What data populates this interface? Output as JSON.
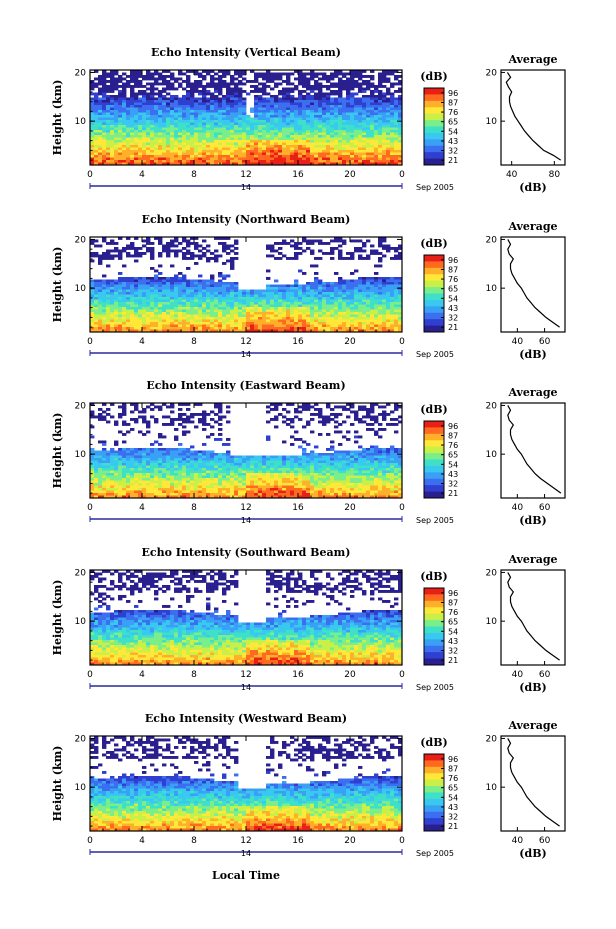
{
  "colors": {
    "colormap": [
      "#2a1f8f",
      "#2f3fd0",
      "#3c6ff0",
      "#3aa0f5",
      "#38c8f0",
      "#3fe0c8",
      "#7aee8a",
      "#c8f048",
      "#ffe838",
      "#ffb02a",
      "#ff6a20",
      "#e82018"
    ],
    "axis": "#000000",
    "date_axis": "#2a2aa0"
  },
  "date_label": "Sep 2005",
  "day_label": "14",
  "x_axis_title": "Local Time",
  "chart_data": [
    {
      "id": "vertical",
      "type": "heatmap",
      "title": "Echo Intensity (Vertical Beam)",
      "ylabel": "Height (km)",
      "xlim": [
        0,
        24
      ],
      "xticks": [
        "0",
        "4",
        "8",
        "12",
        "16",
        "20",
        "0"
      ],
      "ylim": [
        1,
        20.5
      ],
      "yticks": [
        "10",
        "20"
      ],
      "colorbar": {
        "label": "(dB)",
        "ticks": [
          "96",
          "87",
          "76",
          "65",
          "54",
          "43",
          "32",
          "21"
        ]
      },
      "average": {
        "title": "Average",
        "xlabel": "(dB)",
        "xticks": [
          "40",
          "80"
        ],
        "xlim": [
          30,
          90
        ],
        "heights": [
          2,
          3,
          4,
          5,
          6,
          7,
          8,
          9,
          10,
          11,
          12,
          13,
          14,
          15,
          16,
          17,
          18,
          19,
          20
        ],
        "values": [
          86,
          79,
          70,
          65,
          60,
          56,
          52,
          49,
          46,
          43,
          41,
          39,
          38,
          38,
          40,
          37,
          35,
          39,
          36
        ]
      }
    },
    {
      "id": "northward",
      "type": "heatmap",
      "title": "Echo Intensity (Northward Beam)",
      "ylabel": "Height (km)",
      "xlim": [
        0,
        24
      ],
      "xticks": [
        "0",
        "4",
        "8",
        "12",
        "16",
        "20",
        "0"
      ],
      "ylim": [
        1,
        20.5
      ],
      "yticks": [
        "10",
        "20"
      ],
      "colorbar": {
        "label": "(dB)",
        "ticks": [
          "96",
          "87",
          "76",
          "65",
          "54",
          "43",
          "32",
          "21"
        ]
      },
      "average": {
        "title": "Average",
        "xlabel": "(dB)",
        "xticks": [
          "40",
          "60"
        ],
        "xlim": [
          28,
          75
        ],
        "heights": [
          2,
          3,
          4,
          5,
          6,
          7,
          8,
          9,
          10,
          11,
          12,
          13,
          14,
          15,
          16,
          17,
          18,
          19,
          20
        ],
        "values": [
          71,
          66,
          61,
          57,
          53,
          50,
          47,
          45,
          43,
          40,
          38,
          36,
          35,
          35,
          37,
          34,
          33,
          35,
          33
        ]
      }
    },
    {
      "id": "eastward",
      "type": "heatmap",
      "title": "Echo Intensity (Eastward Beam)",
      "ylabel": "Height (km)",
      "xlim": [
        0,
        24
      ],
      "xticks": [
        "0",
        "4",
        "8",
        "12",
        "16",
        "20",
        "0"
      ],
      "ylim": [
        1,
        20.5
      ],
      "yticks": [
        "10",
        "20"
      ],
      "colorbar": {
        "label": "(dB)",
        "ticks": [
          "96",
          "87",
          "76",
          "65",
          "54",
          "43",
          "32",
          "21"
        ]
      },
      "average": {
        "title": "Average",
        "xlabel": "(dB)",
        "xticks": [
          "40",
          "60"
        ],
        "xlim": [
          28,
          75
        ],
        "heights": [
          2,
          3,
          4,
          5,
          6,
          7,
          8,
          9,
          10,
          11,
          12,
          13,
          14,
          15,
          16,
          17,
          18,
          19,
          20
        ],
        "values": [
          72,
          67,
          62,
          57,
          53,
          50,
          47,
          45,
          43,
          40,
          38,
          36,
          35,
          35,
          37,
          34,
          33,
          35,
          33
        ]
      }
    },
    {
      "id": "southward",
      "type": "heatmap",
      "title": "Echo Intensity (Southward Beam)",
      "ylabel": "Height (km)",
      "xlim": [
        0,
        24
      ],
      "xticks": [
        "0",
        "4",
        "8",
        "12",
        "16",
        "20",
        "0"
      ],
      "ylim": [
        1,
        20.5
      ],
      "yticks": [
        "10",
        "20"
      ],
      "colorbar": {
        "label": "(dB)",
        "ticks": [
          "96",
          "87",
          "76",
          "65",
          "54",
          "43",
          "32",
          "21"
        ]
      },
      "average": {
        "title": "Average",
        "xlabel": "(dB)",
        "xticks": [
          "40",
          "60"
        ],
        "xlim": [
          28,
          75
        ],
        "heights": [
          2,
          3,
          4,
          5,
          6,
          7,
          8,
          9,
          10,
          11,
          12,
          13,
          14,
          15,
          16,
          17,
          18,
          19,
          20
        ],
        "values": [
          71,
          66,
          61,
          57,
          53,
          50,
          47,
          45,
          43,
          40,
          38,
          36,
          35,
          35,
          37,
          34,
          33,
          35,
          33
        ]
      }
    },
    {
      "id": "westward",
      "type": "heatmap",
      "title": "Echo Intensity (Westward Beam)",
      "ylabel": "Height (km)",
      "xlim": [
        0,
        24
      ],
      "xticks": [
        "0",
        "4",
        "8",
        "12",
        "16",
        "20",
        "0"
      ],
      "ylim": [
        1,
        20.5
      ],
      "yticks": [
        "10",
        "20"
      ],
      "colorbar": {
        "label": "(dB)",
        "ticks": [
          "96",
          "87",
          "76",
          "65",
          "54",
          "43",
          "32",
          "21"
        ]
      },
      "average": {
        "title": "Average",
        "xlabel": "(dB)",
        "xticks": [
          "40",
          "60"
        ],
        "xlim": [
          28,
          75
        ],
        "heights": [
          2,
          3,
          4,
          5,
          6,
          7,
          8,
          9,
          10,
          11,
          12,
          13,
          14,
          15,
          16,
          17,
          18,
          19,
          20
        ],
        "values": [
          71,
          66,
          61,
          57,
          53,
          50,
          47,
          45,
          43,
          40,
          38,
          36,
          35,
          35,
          37,
          34,
          33,
          35,
          33
        ]
      }
    }
  ]
}
